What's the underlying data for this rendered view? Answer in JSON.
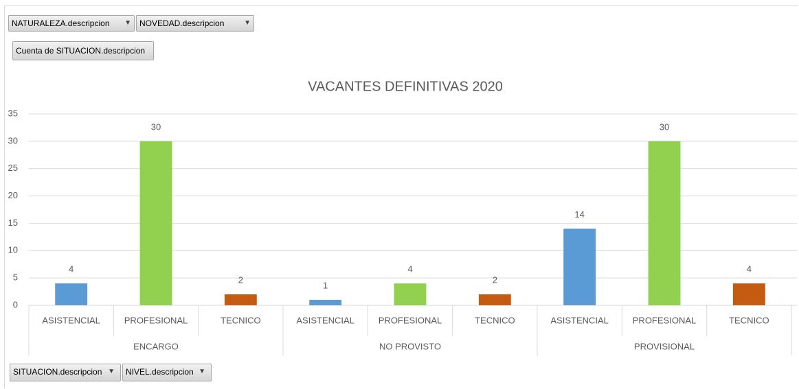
{
  "pivot_fields": {
    "filters": [
      "NATURALEZA.descripcion",
      "NOVEDAD.descripcion"
    ],
    "values": [
      "Cuenta de SITUACION.descripcion"
    ],
    "axis": [
      "SITUACION.descripcion",
      "NIVEL.descripcion"
    ]
  },
  "chart_data": {
    "type": "bar",
    "title": "VACANTES DEFINITIVAS 2020",
    "categories": [
      "ENCARGO",
      "NO PROVISTO",
      "PROVISIONAL"
    ],
    "series": [
      {
        "name": "ASISTENCIAL",
        "color": "#5b9bd5",
        "values": [
          4,
          1,
          14
        ]
      },
      {
        "name": "PROFESIONAL",
        "color": "#92d050",
        "values": [
          30,
          4,
          30
        ]
      },
      {
        "name": "TECNICO",
        "color": "#c55a11",
        "values": [
          2,
          2,
          4
        ]
      }
    ],
    "ylim": [
      0,
      35
    ],
    "yticks": [
      0,
      5,
      10,
      15,
      20,
      25,
      30,
      35
    ],
    "grid": true,
    "data_labels": true
  }
}
